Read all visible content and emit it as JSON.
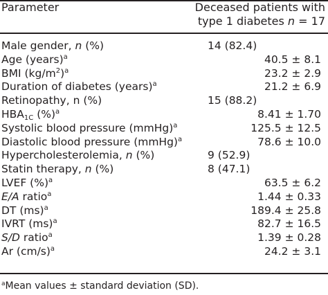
{
  "header": {
    "parameter": "Parameter",
    "group_line1": "Deceased patients with",
    "group_line2_prefix": "type 1 diabetes ",
    "group_line2_n": "n",
    "group_line2_suffix": " = 17"
  },
  "rows": [
    {
      "id": "male-gender",
      "parts": [
        {
          "t": "Male gender, "
        },
        {
          "t": "n",
          "s": "i"
        },
        {
          "t": " (%)"
        }
      ],
      "value": "14 (82.4)",
      "kind": "count"
    },
    {
      "id": "age",
      "parts": [
        {
          "t": "Age (years)"
        },
        {
          "t": "a",
          "s": "sup"
        }
      ],
      "value": "40.5 ± 8.1",
      "kind": "mean"
    },
    {
      "id": "bmi",
      "parts": [
        {
          "t": "BMI (kg/m"
        },
        {
          "t": "2",
          "s": "sup"
        },
        {
          "t": ")"
        },
        {
          "t": "a",
          "s": "sup"
        }
      ],
      "value": "23.2 ± 2.9",
      "kind": "mean"
    },
    {
      "id": "duration-of-diabetes",
      "parts": [
        {
          "t": "Duration of diabetes (years)"
        },
        {
          "t": "a",
          "s": "sup"
        }
      ],
      "value": "21.2 ± 6.9",
      "kind": "mean"
    },
    {
      "id": "retinopathy",
      "parts": [
        {
          "t": "Retinopathy, n (%)"
        }
      ],
      "value": "15 (88.2)",
      "kind": "count"
    },
    {
      "id": "hba1c",
      "parts": [
        {
          "t": "HBA"
        },
        {
          "t": "1C",
          "s": "sub"
        },
        {
          "t": " (%)"
        },
        {
          "t": "a",
          "s": "sup"
        }
      ],
      "value": "8.41 ± 1.70",
      "kind": "mean"
    },
    {
      "id": "systolic-blood-pressure",
      "parts": [
        {
          "t": "Systolic blood pressure (mmHg)"
        },
        {
          "t": "a",
          "s": "sup"
        }
      ],
      "value": "125.5 ± 12.5",
      "kind": "mean"
    },
    {
      "id": "diastolic-blood-pressure",
      "parts": [
        {
          "t": "Diastolic blood pressure (mmHg)"
        },
        {
          "t": "a",
          "s": "sup"
        }
      ],
      "value": "78.6 ± 10.0",
      "kind": "mean"
    },
    {
      "id": "hypercholesterolemia",
      "parts": [
        {
          "t": "Hypercholesterolemia, "
        },
        {
          "t": "n",
          "s": "i"
        },
        {
          "t": " (%)"
        }
      ],
      "value": "9 (52.9)",
      "kind": "count"
    },
    {
      "id": "statin-therapy",
      "parts": [
        {
          "t": "Statin therapy, "
        },
        {
          "t": "n",
          "s": "i"
        },
        {
          "t": " (%)"
        }
      ],
      "value": "8 (47.1)",
      "kind": "count"
    },
    {
      "id": "lvef",
      "parts": [
        {
          "t": "LVEF (%)"
        },
        {
          "t": "a",
          "s": "sup"
        }
      ],
      "value": "63.5 ± 6.2",
      "kind": "mean"
    },
    {
      "id": "ea-ratio",
      "parts": [
        {
          "t": "E/A",
          "s": "i"
        },
        {
          "t": " ratio"
        },
        {
          "t": "a",
          "s": "sup"
        }
      ],
      "value": "1.44 ± 0.33",
      "kind": "mean"
    },
    {
      "id": "dt",
      "parts": [
        {
          "t": "DT (ms)"
        },
        {
          "t": "a",
          "s": "sup"
        }
      ],
      "value": "189.4 ± 25.8",
      "kind": "mean"
    },
    {
      "id": "ivrt",
      "parts": [
        {
          "t": "IVRT (ms)"
        },
        {
          "t": "a",
          "s": "sup"
        }
      ],
      "value": "82.7 ± 16.5",
      "kind": "mean"
    },
    {
      "id": "sd-ratio",
      "parts": [
        {
          "t": "S/D",
          "s": "i"
        },
        {
          "t": " ratio"
        },
        {
          "t": "a",
          "s": "sup"
        }
      ],
      "value": "1.39 ± 0.28",
      "kind": "mean"
    },
    {
      "id": "ar",
      "parts": [
        {
          "t": "Ar (cm/s)"
        },
        {
          "t": "a",
          "s": "sup"
        }
      ],
      "value": "24.2 ± 3.1",
      "kind": "mean"
    }
  ],
  "footnote": {
    "marker": "a",
    "text": "Mean values ± standard deviation (SD)."
  }
}
